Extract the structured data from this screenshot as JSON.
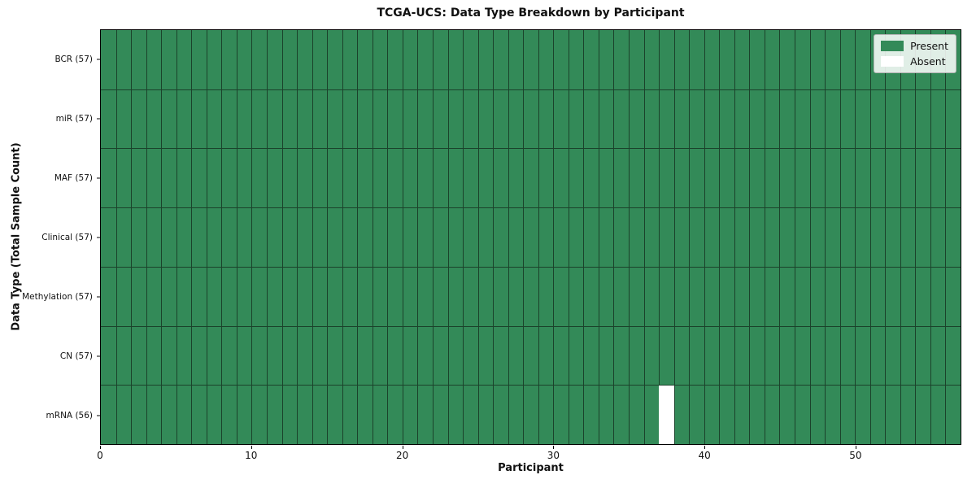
{
  "chart_data": {
    "type": "heatmap",
    "title": "TCGA-UCS: Data Type Breakdown by Participant",
    "xlabel": "Participant",
    "ylabel": "Data Type (Total Sample Count)",
    "n_participants": 57,
    "x_range": [
      0,
      57
    ],
    "x_ticks": [
      0,
      10,
      20,
      30,
      40,
      50
    ],
    "grid": true,
    "rows": [
      {
        "label": "BCR (57)",
        "data_type": "BCR",
        "total_samples": 57,
        "absent_participants": []
      },
      {
        "label": "miR (57)",
        "data_type": "miR",
        "total_samples": 57,
        "absent_participants": []
      },
      {
        "label": "MAF (57)",
        "data_type": "MAF",
        "total_samples": 57,
        "absent_participants": []
      },
      {
        "label": "Clinical (57)",
        "data_type": "Clinical",
        "total_samples": 57,
        "absent_participants": []
      },
      {
        "label": "Methylation (57)",
        "data_type": "Methylation",
        "total_samples": 57,
        "absent_participants": []
      },
      {
        "label": "CN (57)",
        "data_type": "CN",
        "total_samples": 57,
        "absent_participants": []
      },
      {
        "label": "mRNA (56)",
        "data_type": "mRNA",
        "total_samples": 56,
        "absent_participants": [
          37
        ]
      }
    ],
    "legend": {
      "position": "upper right",
      "items": [
        {
          "label": "Present",
          "color": "#338a58"
        },
        {
          "label": "Absent",
          "color": "#ffffff"
        }
      ]
    },
    "colors": {
      "present": "#338a58",
      "absent": "#ffffff",
      "grid_line": "#1b422b",
      "spine": "#000000"
    }
  }
}
